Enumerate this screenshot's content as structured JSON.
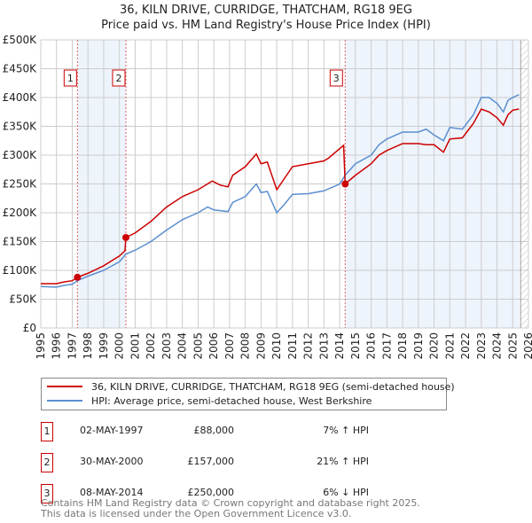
{
  "chart_data": {
    "type": "line",
    "title": "36, KILN DRIVE, CURRIDGE, THATCHAM, RG18 9EG",
    "subtitle": "Price paid vs. HM Land Registry's House Price Index (HPI)",
    "xlim": [
      1995,
      2026
    ],
    "ylim": [
      0,
      500000
    ],
    "y_ticks": [
      0,
      50000,
      100000,
      150000,
      200000,
      250000,
      300000,
      350000,
      400000,
      450000,
      500000
    ],
    "y_tick_labels": [
      "£0",
      "£50K",
      "£100K",
      "£150K",
      "£200K",
      "£250K",
      "£300K",
      "£350K",
      "£400K",
      "£450K",
      "£500K"
    ],
    "x_tick_labels": [
      "1995",
      "1996",
      "1997",
      "1998",
      "1999",
      "2000",
      "2001",
      "2002",
      "2003",
      "2004",
      "2005",
      "2006",
      "2007",
      "2008",
      "2009",
      "2010",
      "2011",
      "2012",
      "2013",
      "2014",
      "2015",
      "2016",
      "2017",
      "2018",
      "2019",
      "2020",
      "2021",
      "2022",
      "2023",
      "2024",
      "2025",
      "2026"
    ],
    "grid": true,
    "shaded_periods": [
      [
        1997.33,
        2000.41
      ],
      [
        2014.35,
        2025.4
      ]
    ],
    "hatched_from": 2025.5,
    "series": [
      {
        "name": "36, KILN DRIVE, CURRIDGE, THATCHAM, RG18 9EG (semi-detached house)",
        "color": "#cc0000",
        "x": [
          1995,
          1996,
          1996.5,
          1997,
          1997.33,
          1998,
          1999,
          2000,
          2000.35,
          2000.41,
          2001,
          2002,
          2003,
          2004,
          2005,
          2005.9,
          2006.4,
          2006.9,
          2007.2,
          2008,
          2008.7,
          2009,
          2009.4,
          2010,
          2010.5,
          2011,
          2012,
          2013,
          2013.3,
          2014.25,
          2014.35,
          2015,
          2016,
          2016.5,
          2017,
          2018,
          2019,
          2019.5,
          2020,
          2020.6,
          2021,
          2021.8,
          2022.5,
          2023,
          2023.5,
          2024,
          2024.4,
          2024.7,
          2025,
          2025.4
        ],
        "y": [
          77000,
          77000,
          80000,
          82000,
          88000,
          95000,
          108000,
          125000,
          134000,
          157000,
          165000,
          185000,
          210000,
          228000,
          240000,
          255000,
          248000,
          245000,
          265000,
          280000,
          302000,
          285000,
          288000,
          240000,
          260000,
          280000,
          285000,
          290000,
          295000,
          317000,
          250000,
          265000,
          285000,
          300000,
          308000,
          320000,
          320000,
          318000,
          318000,
          305000,
          328000,
          330000,
          355000,
          380000,
          375000,
          365000,
          352000,
          370000,
          378000,
          380000
        ]
      },
      {
        "name": "HPI: Average price, semi-detached house, West Berkshire",
        "color": "#5b8fd0",
        "x": [
          1995,
          1996,
          1996.5,
          1997,
          1997.33,
          1998,
          1999,
          2000,
          2000.4,
          2001,
          2002,
          2003,
          2004,
          2005,
          2005.6,
          2006,
          2006.9,
          2007.2,
          2008,
          2008.7,
          2009,
          2009.4,
          2010,
          2010.5,
          2011,
          2012,
          2013,
          2013.6,
          2014,
          2014.35,
          2015,
          2016,
          2016.5,
          2017,
          2018,
          2019,
          2019.5,
          2020,
          2020.6,
          2021,
          2021.8,
          2022.5,
          2023,
          2023.5,
          2024,
          2024.4,
          2024.7,
          2025,
          2025.4
        ],
        "y": [
          72000,
          71000,
          74000,
          76000,
          82000,
          90000,
          100000,
          115000,
          128000,
          135000,
          150000,
          170000,
          188000,
          200000,
          210000,
          205000,
          202000,
          218000,
          228000,
          250000,
          235000,
          237000,
          200000,
          215000,
          232000,
          233000,
          238000,
          245000,
          250000,
          265000,
          285000,
          300000,
          318000,
          328000,
          340000,
          340000,
          345000,
          335000,
          325000,
          348000,
          345000,
          370000,
          400000,
          400000,
          390000,
          375000,
          395000,
          400000,
          405000
        ]
      }
    ],
    "sales": [
      {
        "label": "1",
        "x": 1997.33,
        "y": 88000,
        "date": "02-MAY-1997",
        "price": "£88,000",
        "hpi": "7% ↑ HPI"
      },
      {
        "label": "2",
        "x": 2000.41,
        "y": 157000,
        "date": "30-MAY-2000",
        "price": "£157,000",
        "hpi": "21% ↑ HPI"
      },
      {
        "label": "3",
        "x": 2014.35,
        "y": 250000,
        "date": "08-MAY-2014",
        "price": "£250,000",
        "hpi": "6% ↓ HPI"
      }
    ]
  },
  "footer": [
    "Contains HM Land Registry data © Crown copyright and database right 2025.",
    "This data is licensed under the Open Government Licence v3.0."
  ]
}
